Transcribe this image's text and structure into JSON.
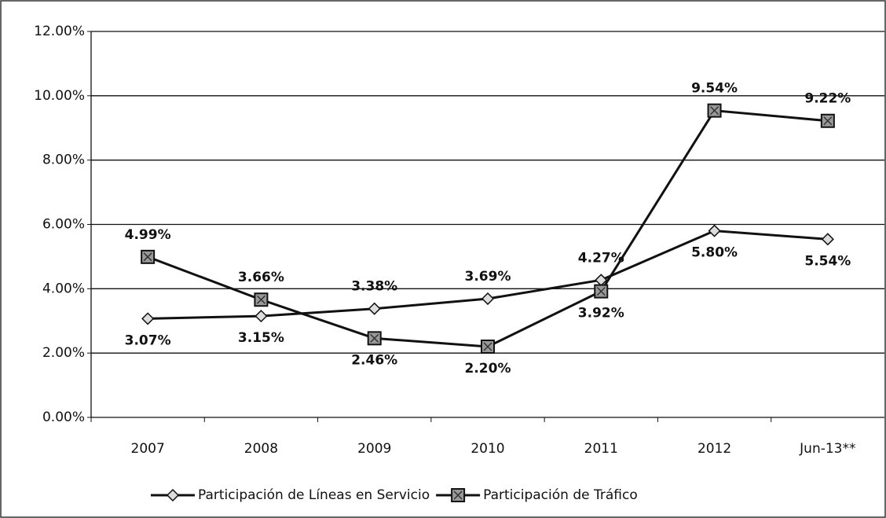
{
  "chart_data": {
    "type": "line",
    "categories": [
      "2007",
      "2008",
      "2009",
      "2010",
      "2011",
      "2012",
      "Jun-13**"
    ],
    "series": [
      {
        "name": "Participación de Líneas en Servicio",
        "color": "#111111",
        "values": [
          3.07,
          3.15,
          3.38,
          3.69,
          4.27,
          5.8,
          5.54
        ],
        "value_labels": [
          "3.07%",
          "3.15%",
          "3.38%",
          "3.69%",
          "4.27%",
          "5.80%",
          "5.54%"
        ]
      },
      {
        "name": "Participación de Tráfico",
        "color": "#111111",
        "values": [
          4.99,
          3.66,
          2.46,
          2.2,
          3.92,
          9.54,
          9.22
        ],
        "value_labels": [
          "4.99%",
          "3.66%",
          "2.46%",
          "2.20%",
          "3.92%",
          "9.54%",
          "9.22%"
        ]
      }
    ],
    "ylim": [
      0,
      12
    ],
    "yticks": [
      {
        "value": 0,
        "label": "0.00%"
      },
      {
        "value": 2,
        "label": "2.00%"
      },
      {
        "value": 4,
        "label": "4.00%"
      },
      {
        "value": 6,
        "label": "6.00%"
      },
      {
        "value": 8,
        "label": "8.00%"
      },
      {
        "value": 10,
        "label": "10.00%"
      },
      {
        "value": 12,
        "label": "12.00%"
      }
    ],
    "grid": true,
    "legend": "bottom"
  }
}
